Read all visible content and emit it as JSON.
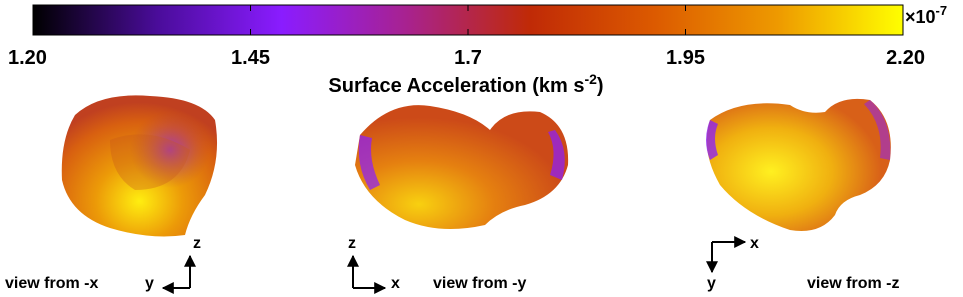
{
  "chart_data": {
    "type": "colorbar",
    "xlim": [
      1.2,
      2.2
    ],
    "xticks": [
      {
        "value": 1.2,
        "label": "1.20"
      },
      1.45,
      1.7,
      1.95,
      {
        "value": 2.2,
        "label": "2.20"
      }
    ],
    "colormap": [
      "#000000",
      "#4a0c9a",
      "#8a1cff",
      "#a82290",
      "#c02a06",
      "#dc5a00",
      "#ee9a00",
      "#ffff00"
    ],
    "multiplier_base": "×10",
    "multiplier_exp": "-7",
    "axis_label": "Surface Acceleration (km s",
    "axis_label_sup": "-2",
    "axis_label_end": ")"
  },
  "views": [
    {
      "label": "view from -x",
      "axes": [
        "z",
        "y"
      ]
    },
    {
      "label": "view from -y",
      "axes": [
        "z",
        "x"
      ]
    },
    {
      "label": "view from -z",
      "axes": [
        "x",
        "y"
      ]
    }
  ]
}
